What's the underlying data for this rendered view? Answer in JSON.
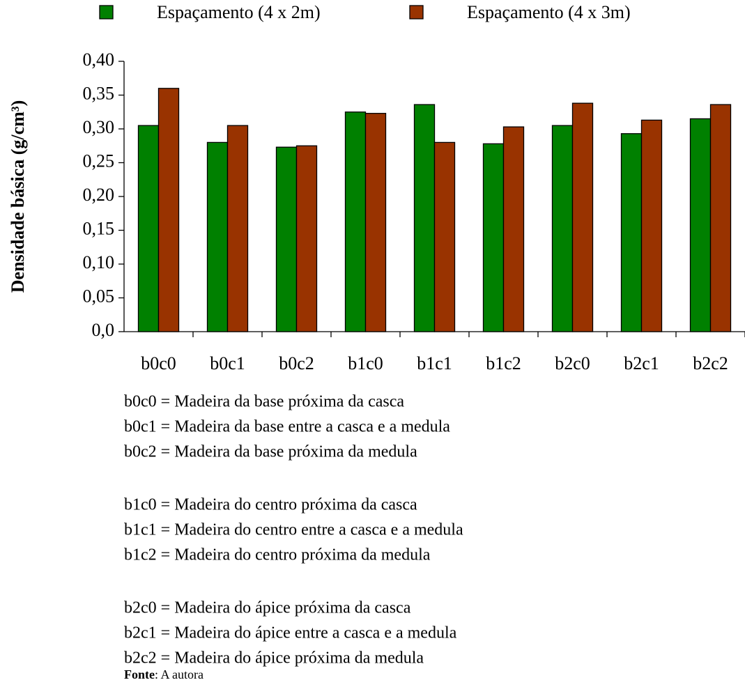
{
  "chart_data": {
    "type": "bar",
    "y_label": "Densidade básica (g/cm³)",
    "categories": [
      "b0c0",
      "b0c1",
      "b0c2",
      "b1c0",
      "b1c1",
      "b1c2",
      "b2c0",
      "b2c1",
      "b2c2"
    ],
    "series": [
      {
        "name": "Espaçamento (4 x 2m)",
        "color": "#008000",
        "values": [
          0.305,
          0.28,
          0.273,
          0.325,
          0.336,
          0.278,
          0.305,
          0.293,
          0.315
        ]
      },
      {
        "name": "Espaçamento (4 x 3m)",
        "color": "#993300",
        "values": [
          0.36,
          0.305,
          0.275,
          0.323,
          0.28,
          0.303,
          0.338,
          0.313,
          0.336
        ]
      }
    ],
    "ylim": [
      0,
      0.4
    ],
    "yticks": [
      {
        "value": 0,
        "label": "0,0"
      },
      {
        "value": 0.05,
        "label": "0,05"
      },
      {
        "value": 0.1,
        "label": "0,10"
      },
      {
        "value": 0.15,
        "label": "0,15"
      },
      {
        "value": 0.2,
        "label": "0,20"
      },
      {
        "value": 0.25,
        "label": "0,25"
      },
      {
        "value": 0.3,
        "label": "0,30"
      },
      {
        "value": 0.35,
        "label": "0,35"
      },
      {
        "value": 0.4,
        "label": "0,40"
      }
    ],
    "grid": false,
    "legend": "top",
    "notes": [
      [
        "b0c0 = Madeira da base próxima da casca",
        "b0c1 = Madeira da base entre a casca e a medula",
        "b0c2 = Madeira da base próxima da medula"
      ],
      [
        "b1c0 = Madeira do centro próxima da casca",
        "b1c1 = Madeira do centro entre a casca e a medula",
        "b1c2 = Madeira do centro próxima da medula"
      ],
      [
        "b2c0 = Madeira do ápice próxima da casca",
        "b2c1 = Madeira do ápice entre a casca e a medula",
        "b2c2 = Madeira do ápice próxima da medula"
      ]
    ],
    "source": {
      "label": "Fonte",
      "text": ": A autora"
    }
  }
}
